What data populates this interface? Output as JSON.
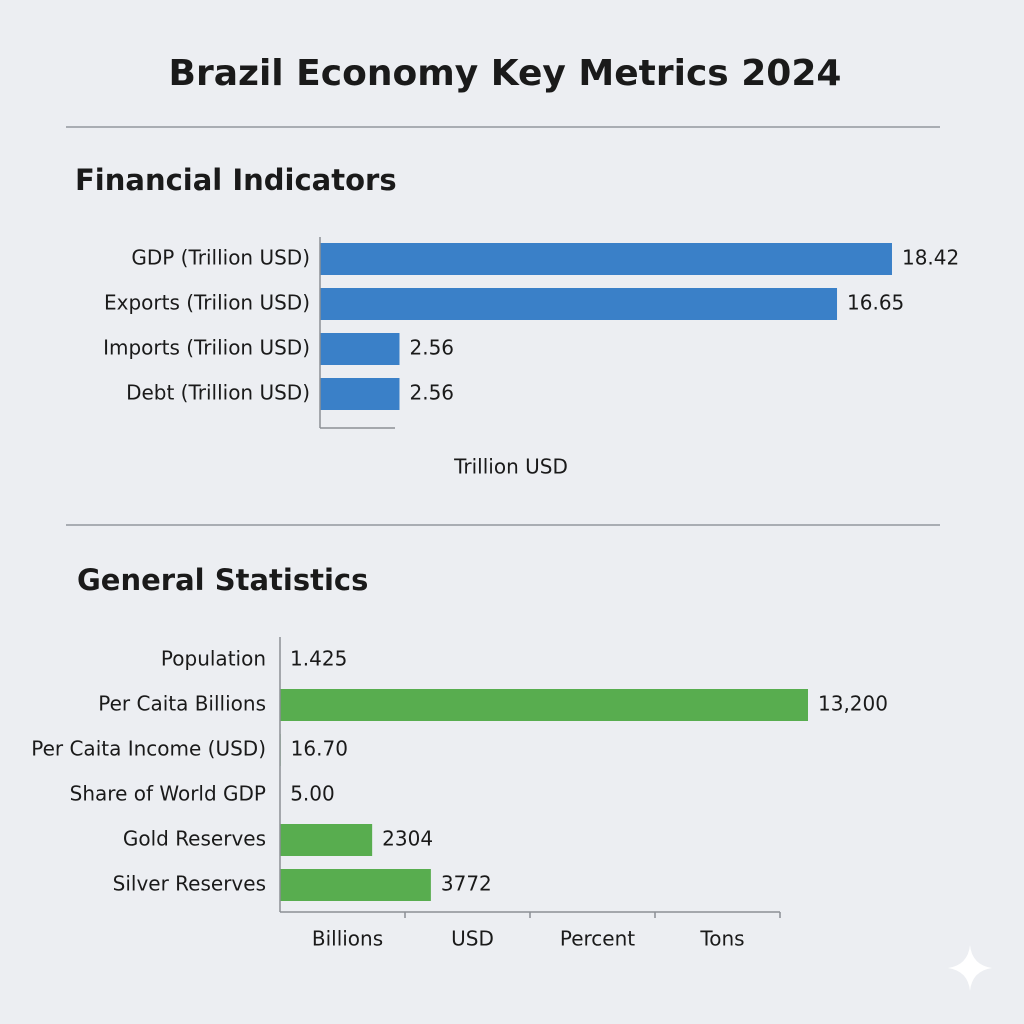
{
  "title": "Brazil Economy Key Metrics 2024",
  "chart_data": [
    {
      "type": "bar",
      "orientation": "horizontal",
      "title": "Financial Indicators",
      "categories": [
        "GDP (Trillion USD)",
        "Exports (Trilion USD)",
        "Imports (Trilion USD)",
        "Debt (Trillion USD)"
      ],
      "values": [
        18.42,
        16.65,
        2.56,
        2.56
      ],
      "color": "#3a80c8",
      "xlim": [
        0,
        19
      ],
      "x_label": "Trillion USD"
    },
    {
      "type": "bar",
      "orientation": "horizontal",
      "title": "General Statistics",
      "categories": [
        "Population",
        "Per Caita Billions",
        "Per Caita Income (USD)",
        "Share of World GDP",
        "Gold Reserves",
        "Silver Reserves"
      ],
      "values": [
        1.425,
        13200,
        16.7,
        5,
        2304,
        3772
      ],
      "value_labels": [
        "1.425",
        "13,200",
        "16.70",
        "5.00",
        "2304",
        "3772"
      ],
      "color": "#58ad4f",
      "xlim": [
        0,
        14000
      ],
      "x_units": [
        "Billions",
        "USD",
        "Percent",
        "Tons"
      ]
    }
  ]
}
